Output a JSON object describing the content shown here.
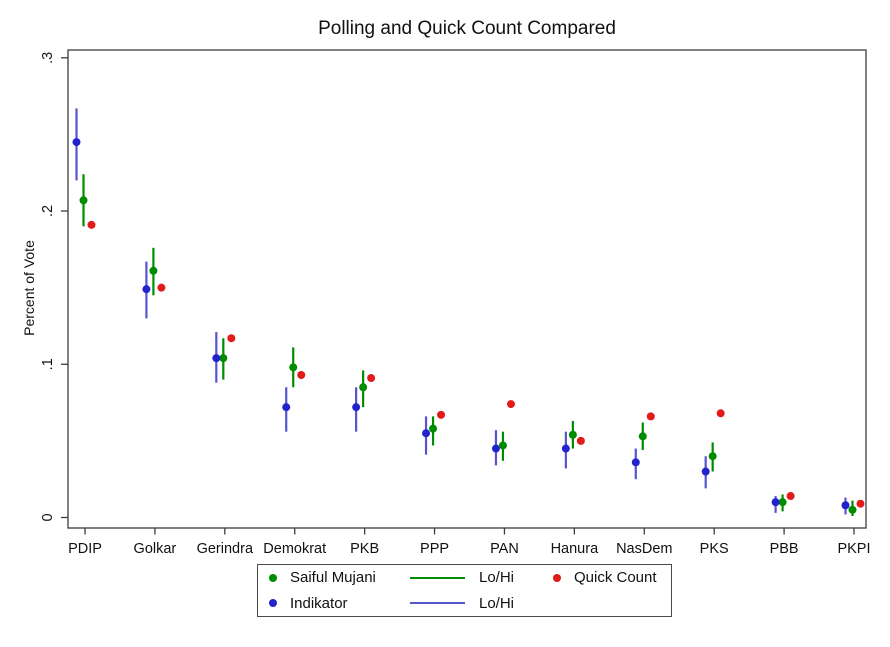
{
  "chart_data": {
    "type": "scatter",
    "title": "Polling and Quick Count Compared",
    "xlabel": "",
    "ylabel": "Percent of Vote",
    "ylim": [
      0,
      0.3
    ],
    "grid": false,
    "axis_color": "#3c3c3c",
    "yticks": [
      {
        "value": 0.0,
        "label": "0"
      },
      {
        "value": 0.1,
        "label": ".1"
      },
      {
        "value": 0.2,
        "label": ".2"
      },
      {
        "value": 0.3,
        "label": ".3"
      }
    ],
    "categories": [
      "PDIP",
      "Golkar",
      "Gerindra",
      "Demokrat",
      "PKB",
      "PPP",
      "PAN",
      "Hanura",
      "NasDem",
      "PKS",
      "PBB",
      "PKPI"
    ],
    "series": [
      {
        "name": "Saiful Mujani",
        "kind": "point_with_ci",
        "color": "#008c00",
        "line_color": "#008c00",
        "values": [
          0.207,
          0.161,
          0.104,
          0.098,
          0.085,
          0.058,
          0.047,
          0.054,
          0.053,
          0.04,
          0.01,
          0.005
        ],
        "lo": [
          0.19,
          0.145,
          0.09,
          0.085,
          0.072,
          0.047,
          0.037,
          0.045,
          0.044,
          0.03,
          0.004,
          0.001
        ],
        "hi": [
          0.224,
          0.176,
          0.117,
          0.111,
          0.096,
          0.066,
          0.056,
          0.063,
          0.062,
          0.049,
          0.015,
          0.011
        ]
      },
      {
        "name": "Indikator",
        "kind": "point_with_ci",
        "color": "#2323cd",
        "line_color": "#5555cf",
        "values": [
          0.245,
          0.149,
          0.104,
          0.072,
          0.072,
          0.055,
          0.045,
          0.045,
          0.036,
          0.03,
          0.01,
          0.008
        ],
        "lo": [
          0.22,
          0.13,
          0.088,
          0.056,
          0.056,
          0.041,
          0.034,
          0.032,
          0.025,
          0.019,
          0.003,
          0.002
        ],
        "hi": [
          0.267,
          0.167,
          0.121,
          0.085,
          0.085,
          0.066,
          0.057,
          0.056,
          0.045,
          0.04,
          0.014,
          0.013
        ]
      },
      {
        "name": "Quick Count",
        "kind": "point",
        "color": "#e21a1a",
        "values": [
          0.191,
          0.15,
          0.117,
          0.093,
          0.091,
          0.067,
          0.074,
          0.05,
          0.066,
          0.068,
          0.014,
          0.009
        ]
      }
    ],
    "legend": {
      "position": "bottom",
      "entries": [
        {
          "label": "Saiful Mujani",
          "marker": "dot",
          "color": "#008c00"
        },
        {
          "label": "Indikator",
          "marker": "dot",
          "color": "#2323cd"
        },
        {
          "label": "Lo/Hi",
          "marker": "line",
          "color": "#008c00"
        },
        {
          "label": "Lo/Hi",
          "marker": "line",
          "color": "#5555cf"
        },
        {
          "label": "Quick Count",
          "marker": "dot",
          "color": "#e21a1a"
        }
      ]
    }
  }
}
